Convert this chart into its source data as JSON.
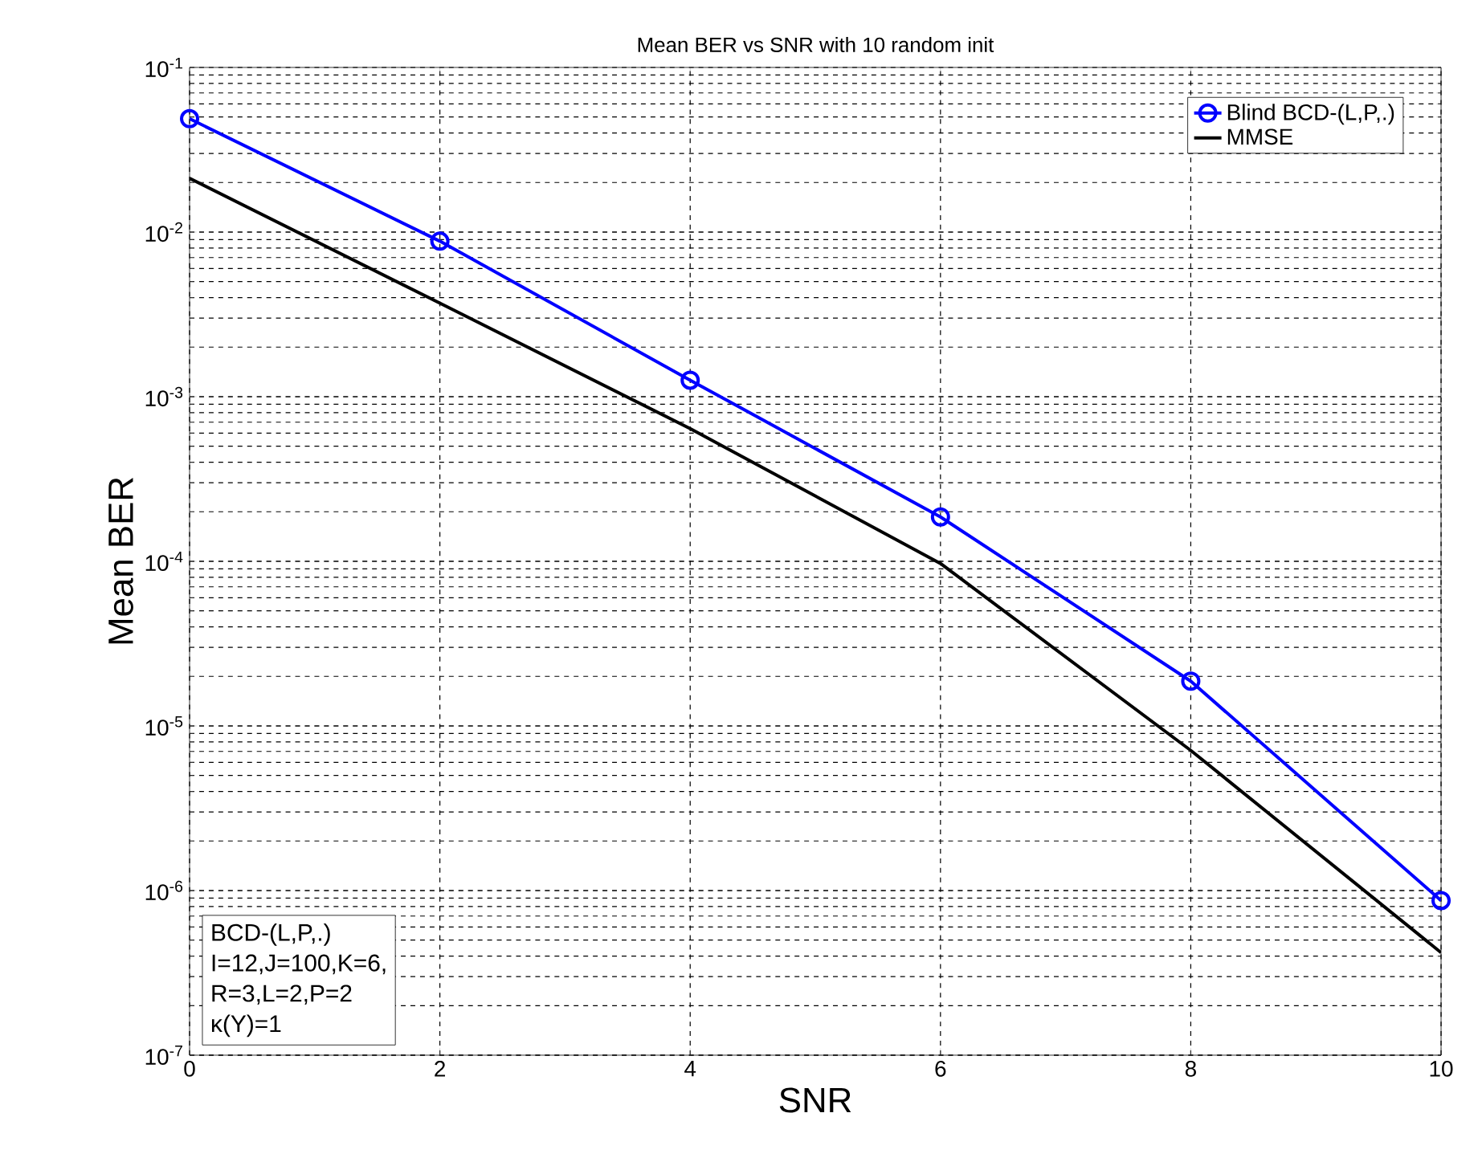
{
  "chart_data": {
    "type": "line",
    "title": "Mean BER vs SNR with 10 random init",
    "xlabel": "SNR",
    "ylabel": "Mean BER",
    "x": [
      0,
      2,
      4,
      6,
      8,
      10
    ],
    "series": [
      {
        "name": "Blind BCD-(L,P,.)",
        "color": "#0000ff",
        "marker": "circle",
        "values": [
          0.0488,
          0.0088,
          0.00126,
          0.000186,
          1.87e-05,
          8.7e-07
        ]
      },
      {
        "name": "MMSE",
        "color": "#000000",
        "marker": "none",
        "values": [
          0.0212,
          0.0037,
          0.00064,
          9.7e-05,
          7.1e-06,
          4.2e-07
        ]
      }
    ],
    "log": "y",
    "xlim": [
      0,
      10
    ],
    "ylim": [
      1e-07,
      0.1
    ],
    "xticks": [
      0,
      2,
      4,
      6,
      8,
      10
    ],
    "yticks": [
      {
        "value": 1e-07,
        "label": "10$^{-7}$"
      },
      {
        "value": 1e-06,
        "label": "10$^{-6}$"
      },
      {
        "value": 1e-05,
        "label": "10$^{-5}$"
      },
      {
        "value": 0.0001,
        "label": "10$^{-4}$"
      },
      {
        "value": 0.001,
        "label": "10$^{-3}$"
      },
      {
        "value": 0.01,
        "label": "10$^{-2}$"
      },
      {
        "value": 0.1,
        "label": "10$^{-1}$"
      }
    ],
    "grid": true,
    "legend": "top right",
    "line_style": "solid",
    "annotations": [
      "BCD-(L,P,.)",
      "I=12,J=100,K=6,",
      "R=3,L=2,P=2",
      "κ(Y)=1"
    ]
  }
}
